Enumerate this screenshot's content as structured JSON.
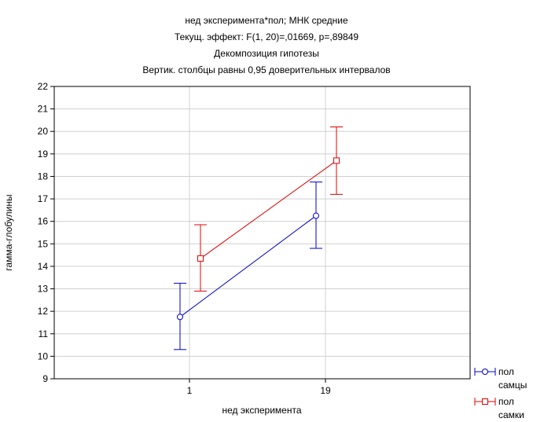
{
  "chart_data": {
    "type": "line",
    "title_lines": [
      "нед эксперимента*пол; МНК средние",
      "Текущ.  эффект: F(1, 20)=,01669, p=,89849",
      "Декомпозиция гипотезы",
      "Вертик. столбцы равны 0,95 доверительных интервалов"
    ],
    "xlabel": "нед эксперимента",
    "ylabel": "гамма-глобулины",
    "categories": [
      "1",
      "19"
    ],
    "ylim": [
      9,
      22
    ],
    "yticks": [
      "9",
      "10",
      "11",
      "12",
      "13",
      "14",
      "15",
      "16",
      "17",
      "18",
      "19",
      "20",
      "21",
      "22"
    ],
    "grid": true,
    "legend_position": "bottom-right",
    "series": [
      {
        "name_line1": "пол",
        "name_line2": "самцы",
        "color": "#0000CC",
        "marker": "circle",
        "values": [
          11.75,
          16.25
        ],
        "ci_low": [
          10.3,
          14.8
        ],
        "ci_high": [
          13.25,
          17.75
        ]
      },
      {
        "name_line1": "пол",
        "name_line2": "самки",
        "color": "#E00000",
        "marker": "square",
        "values": [
          14.35,
          18.7
        ],
        "ci_low": [
          12.9,
          17.2
        ],
        "ci_high": [
          15.85,
          20.2
        ]
      }
    ]
  }
}
